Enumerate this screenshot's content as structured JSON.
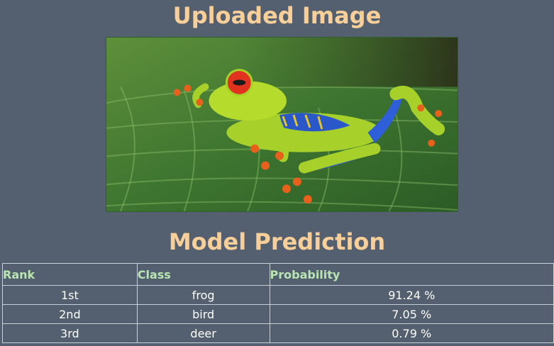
{
  "headings": {
    "uploaded": "Uploaded Image",
    "prediction": "Model Prediction"
  },
  "image": {
    "alt": "red-eyed tree frog on a green leaf"
  },
  "table": {
    "columns": [
      "Rank",
      "Class",
      "Probability"
    ],
    "rows": [
      {
        "rank": "1st",
        "class": "frog",
        "probability": "91.24 %"
      },
      {
        "rank": "2nd",
        "class": "bird",
        "probability": "7.05 %"
      },
      {
        "rank": "3rd",
        "class": "deer",
        "probability": "0.79 %"
      }
    ]
  },
  "colors": {
    "background": "#546070",
    "heading": "#f8cf98",
    "table_header": "#b9e6b0",
    "cell_text": "#ffffff"
  }
}
